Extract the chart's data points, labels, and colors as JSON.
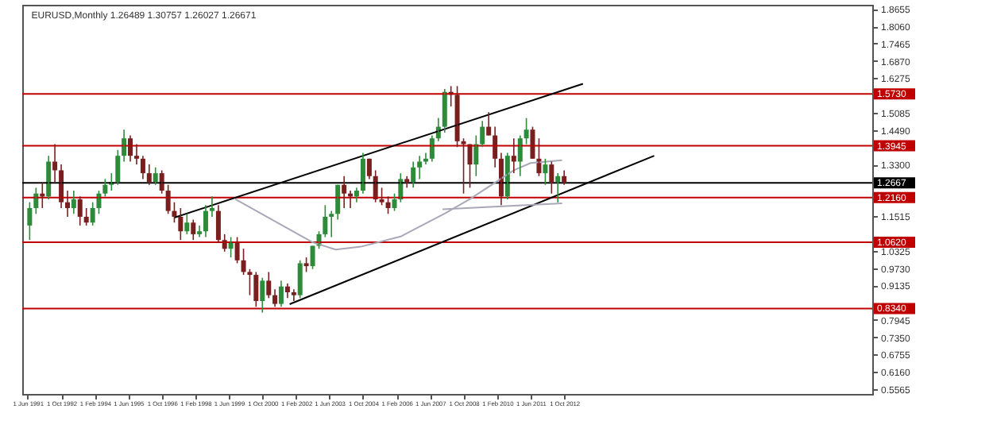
{
  "chart_data": {
    "type": "candlestick",
    "title": "EURUSD,Monthly 1.26489 1.30757 1.26027 1.26671",
    "x": [
      "1991-07",
      "1991-10",
      "1992-01",
      "1992-04",
      "1992-07",
      "1992-10",
      "1993-01",
      "1993-04",
      "1993-07",
      "1993-10",
      "1994-01",
      "1994-04",
      "1994-07",
      "1994-10",
      "1995-01",
      "1995-04",
      "1995-07",
      "1995-10",
      "1996-01",
      "1996-04",
      "1996-07",
      "1996-10",
      "1997-01",
      "1997-04",
      "1997-07",
      "1997-10",
      "1998-01",
      "1998-04",
      "1998-07",
      "1998-10",
      "1999-01",
      "1999-04",
      "1999-07",
      "1999-10",
      "2000-01",
      "2000-04",
      "2000-07",
      "2000-10",
      "2001-01",
      "2001-04",
      "2001-07",
      "2001-10",
      "2002-01",
      "2002-04",
      "2002-07",
      "2002-10",
      "2003-01",
      "2003-04",
      "2003-07",
      "2003-10",
      "2004-01",
      "2004-04",
      "2004-07",
      "2004-10",
      "2005-01",
      "2005-04",
      "2005-07",
      "2005-10",
      "2006-01",
      "2006-04",
      "2006-07",
      "2006-10",
      "2007-01",
      "2007-04",
      "2007-07",
      "2007-10",
      "2008-01",
      "2008-04",
      "2008-07",
      "2008-10",
      "2009-01",
      "2009-04",
      "2009-07",
      "2009-10",
      "2010-01",
      "2010-04",
      "2010-07",
      "2010-10",
      "2011-01",
      "2011-04",
      "2011-07",
      "2011-10",
      "2012-01",
      "2012-04",
      "2012-07",
      "2012-10"
    ],
    "ohlc": [
      [
        1.12,
        1.2,
        1.07,
        1.18
      ],
      [
        1.18,
        1.25,
        1.16,
        1.23
      ],
      [
        1.23,
        1.27,
        1.18,
        1.22
      ],
      [
        1.22,
        1.36,
        1.21,
        1.34
      ],
      [
        1.34,
        1.4,
        1.27,
        1.31
      ],
      [
        1.31,
        1.33,
        1.18,
        1.2
      ],
      [
        1.2,
        1.24,
        1.15,
        1.18
      ],
      [
        1.18,
        1.24,
        1.16,
        1.21
      ],
      [
        1.21,
        1.22,
        1.12,
        1.15
      ],
      [
        1.15,
        1.18,
        1.12,
        1.13
      ],
      [
        1.13,
        1.2,
        1.12,
        1.18
      ],
      [
        1.18,
        1.24,
        1.16,
        1.23
      ],
      [
        1.23,
        1.28,
        1.22,
        1.26
      ],
      [
        1.26,
        1.3,
        1.24,
        1.27
      ],
      [
        1.27,
        1.38,
        1.26,
        1.36
      ],
      [
        1.36,
        1.45,
        1.34,
        1.42
      ],
      [
        1.42,
        1.43,
        1.34,
        1.36
      ],
      [
        1.36,
        1.4,
        1.33,
        1.35
      ],
      [
        1.35,
        1.36,
        1.28,
        1.3
      ],
      [
        1.3,
        1.33,
        1.26,
        1.27
      ],
      [
        1.27,
        1.32,
        1.26,
        1.3
      ],
      [
        1.3,
        1.31,
        1.23,
        1.24
      ],
      [
        1.24,
        1.26,
        1.16,
        1.17
      ],
      [
        1.17,
        1.2,
        1.13,
        1.15
      ],
      [
        1.15,
        1.18,
        1.07,
        1.1
      ],
      [
        1.1,
        1.16,
        1.09,
        1.13
      ],
      [
        1.13,
        1.14,
        1.07,
        1.09
      ],
      [
        1.09,
        1.12,
        1.08,
        1.1
      ],
      [
        1.1,
        1.19,
        1.08,
        1.17
      ],
      [
        1.17,
        1.22,
        1.15,
        1.18
      ],
      [
        1.17,
        1.19,
        1.06,
        1.07
      ],
      [
        1.07,
        1.09,
        1.03,
        1.04
      ],
      [
        1.04,
        1.08,
        1.01,
        1.06
      ],
      [
        1.06,
        1.08,
        0.99,
        1.0
      ],
      [
        1.0,
        1.04,
        0.95,
        0.96
      ],
      [
        0.96,
        0.97,
        0.88,
        0.95
      ],
      [
        0.95,
        0.96,
        0.84,
        0.86
      ],
      [
        0.86,
        0.94,
        0.82,
        0.93
      ],
      [
        0.93,
        0.96,
        0.87,
        0.88
      ],
      [
        0.88,
        0.9,
        0.84,
        0.85
      ],
      [
        0.85,
        0.93,
        0.84,
        0.91
      ],
      [
        0.91,
        0.92,
        0.87,
        0.89
      ],
      [
        0.89,
        0.9,
        0.86,
        0.88
      ],
      [
        0.88,
        1.0,
        0.87,
        0.99
      ],
      [
        0.99,
        1.01,
        0.96,
        0.98
      ],
      [
        0.98,
        1.05,
        0.97,
        1.05
      ],
      [
        1.05,
        1.1,
        1.04,
        1.09
      ],
      [
        1.09,
        1.19,
        1.08,
        1.15
      ],
      [
        1.15,
        1.17,
        1.08,
        1.16
      ],
      [
        1.16,
        1.26,
        1.14,
        1.26
      ],
      [
        1.26,
        1.29,
        1.18,
        1.23
      ],
      [
        1.23,
        1.24,
        1.18,
        1.22
      ],
      [
        1.22,
        1.25,
        1.2,
        1.24
      ],
      [
        1.24,
        1.37,
        1.23,
        1.35
      ],
      [
        1.35,
        1.35,
        1.28,
        1.29
      ],
      [
        1.29,
        1.31,
        1.2,
        1.21
      ],
      [
        1.21,
        1.25,
        1.19,
        1.2
      ],
      [
        1.2,
        1.22,
        1.16,
        1.18
      ],
      [
        1.18,
        1.23,
        1.17,
        1.21
      ],
      [
        1.21,
        1.3,
        1.2,
        1.28
      ],
      [
        1.28,
        1.29,
        1.25,
        1.27
      ],
      [
        1.27,
        1.34,
        1.25,
        1.32
      ],
      [
        1.32,
        1.36,
        1.28,
        1.34
      ],
      [
        1.34,
        1.37,
        1.33,
        1.35
      ],
      [
        1.35,
        1.43,
        1.34,
        1.42
      ],
      [
        1.42,
        1.49,
        1.41,
        1.46
      ],
      [
        1.46,
        1.59,
        1.44,
        1.58
      ],
      [
        1.58,
        1.6,
        1.53,
        1.57
      ],
      [
        1.57,
        1.6,
        1.39,
        1.41
      ],
      [
        1.41,
        1.42,
        1.23,
        1.4
      ],
      [
        1.4,
        1.4,
        1.25,
        1.33
      ],
      [
        1.33,
        1.43,
        1.29,
        1.4
      ],
      [
        1.4,
        1.48,
        1.39,
        1.46
      ],
      [
        1.46,
        1.51,
        1.43,
        1.43
      ],
      [
        1.43,
        1.46,
        1.32,
        1.35
      ],
      [
        1.35,
        1.37,
        1.19,
        1.22
      ],
      [
        1.22,
        1.37,
        1.21,
        1.36
      ],
      [
        1.36,
        1.42,
        1.3,
        1.34
      ],
      [
        1.34,
        1.43,
        1.29,
        1.42
      ],
      [
        1.42,
        1.49,
        1.4,
        1.45
      ],
      [
        1.45,
        1.46,
        1.35,
        1.35
      ],
      [
        1.35,
        1.42,
        1.29,
        1.3
      ],
      [
        1.3,
        1.35,
        1.26,
        1.33
      ],
      [
        1.33,
        1.34,
        1.23,
        1.27
      ],
      [
        1.27,
        1.3,
        1.2,
        1.29
      ],
      [
        1.29,
        1.31,
        1.26,
        1.27
      ]
    ],
    "series": [
      {
        "type": "line",
        "color": "#000000",
        "x": [
          "1997-04",
          "2013-07"
        ],
        "values": [
          1.147,
          1.608
        ]
      },
      {
        "type": "line",
        "color": "#000000",
        "x": [
          "2001-11",
          "2016-05"
        ],
        "values": [
          0.849,
          1.36
        ]
      },
      {
        "type": "line",
        "color": "#a8a8b8",
        "x": [
          "1999-09",
          "2002-10",
          "2003-09",
          "2004-09",
          "2006-04",
          "2008-01",
          "2009-01",
          "2010-10",
          "2011-06",
          "2012-09"
        ],
        "values": [
          1.211,
          1.062,
          1.037,
          1.047,
          1.082,
          1.161,
          1.211,
          1.31,
          1.335,
          1.345
        ]
      },
      {
        "type": "line",
        "color": "#a8a8b8",
        "x": [
          "2007-12",
          "2012-09"
        ],
        "values": [
          1.176,
          1.196
        ]
      }
    ],
    "ref_lines": [
      {
        "axis": "y",
        "value": 1.573,
        "label": "1.5730",
        "color": "#c00000"
      },
      {
        "axis": "y",
        "value": 1.3945,
        "label": "1.3945",
        "color": "#c00000"
      },
      {
        "axis": "y",
        "value": 1.2667,
        "label": "1.2667",
        "color": "#000000"
      },
      {
        "axis": "y",
        "value": 1.216,
        "label": "1.2160",
        "color": "#c00000"
      },
      {
        "axis": "y",
        "value": 1.062,
        "label": "1.0620",
        "color": "#c00000"
      },
      {
        "axis": "y",
        "value": 0.834,
        "label": "0.8340",
        "color": "#c00000"
      }
    ],
    "xlim": [
      "1991-03-15",
      "2025-01"
    ],
    "xticks": [
      {
        "value": "1991-06",
        "label": "1 Jun 1991"
      },
      {
        "value": "1992-10",
        "label": "1 Oct 1992"
      },
      {
        "value": "1994-02",
        "label": "1 Feb 1994"
      },
      {
        "value": "1995-06",
        "label": "1 Jun 1995"
      },
      {
        "value": "1996-10",
        "label": "1 Oct 1996"
      },
      {
        "value": "1998-02",
        "label": "1 Feb 1998"
      },
      {
        "value": "1999-06",
        "label": "1 Jun 1999"
      },
      {
        "value": "2000-10",
        "label": "1 Oct 2000"
      },
      {
        "value": "2002-02",
        "label": "1 Feb 2002"
      },
      {
        "value": "2003-06",
        "label": "1 Jun 2003"
      },
      {
        "value": "2004-10",
        "label": "1 Oct 2004"
      },
      {
        "value": "2006-02",
        "label": "1 Feb 2006"
      },
      {
        "value": "2007-06",
        "label": "1 Jun 2007"
      },
      {
        "value": "2008-10",
        "label": "1 Oct 2008"
      },
      {
        "value": "2010-02",
        "label": "1 Feb 2010"
      },
      {
        "value": "2011-06",
        "label": "1 Jun 2011"
      },
      {
        "value": "2012-10",
        "label": "1 Oct 2012"
      }
    ],
    "ylim": [
      0.54,
      1.88
    ],
    "yticks": [
      1.8655,
      {
        "value": 1.806,
        "label": "1.8060"
      },
      1.7465,
      {
        "value": 1.687,
        "label": "1.6870"
      },
      1.6275,
      1.5085,
      {
        "value": 1.449,
        "label": "1.4490"
      },
      {
        "value": 1.33,
        "label": "1.3300"
      },
      1.1515,
      1.0325,
      {
        "value": 0.973,
        "label": "0.9730"
      },
      0.9135,
      0.7945,
      {
        "value": 0.735,
        "label": "0.7350"
      },
      0.6755,
      {
        "value": 0.616,
        "label": "0.6160"
      },
      0.5565
    ],
    "grid": false
  }
}
